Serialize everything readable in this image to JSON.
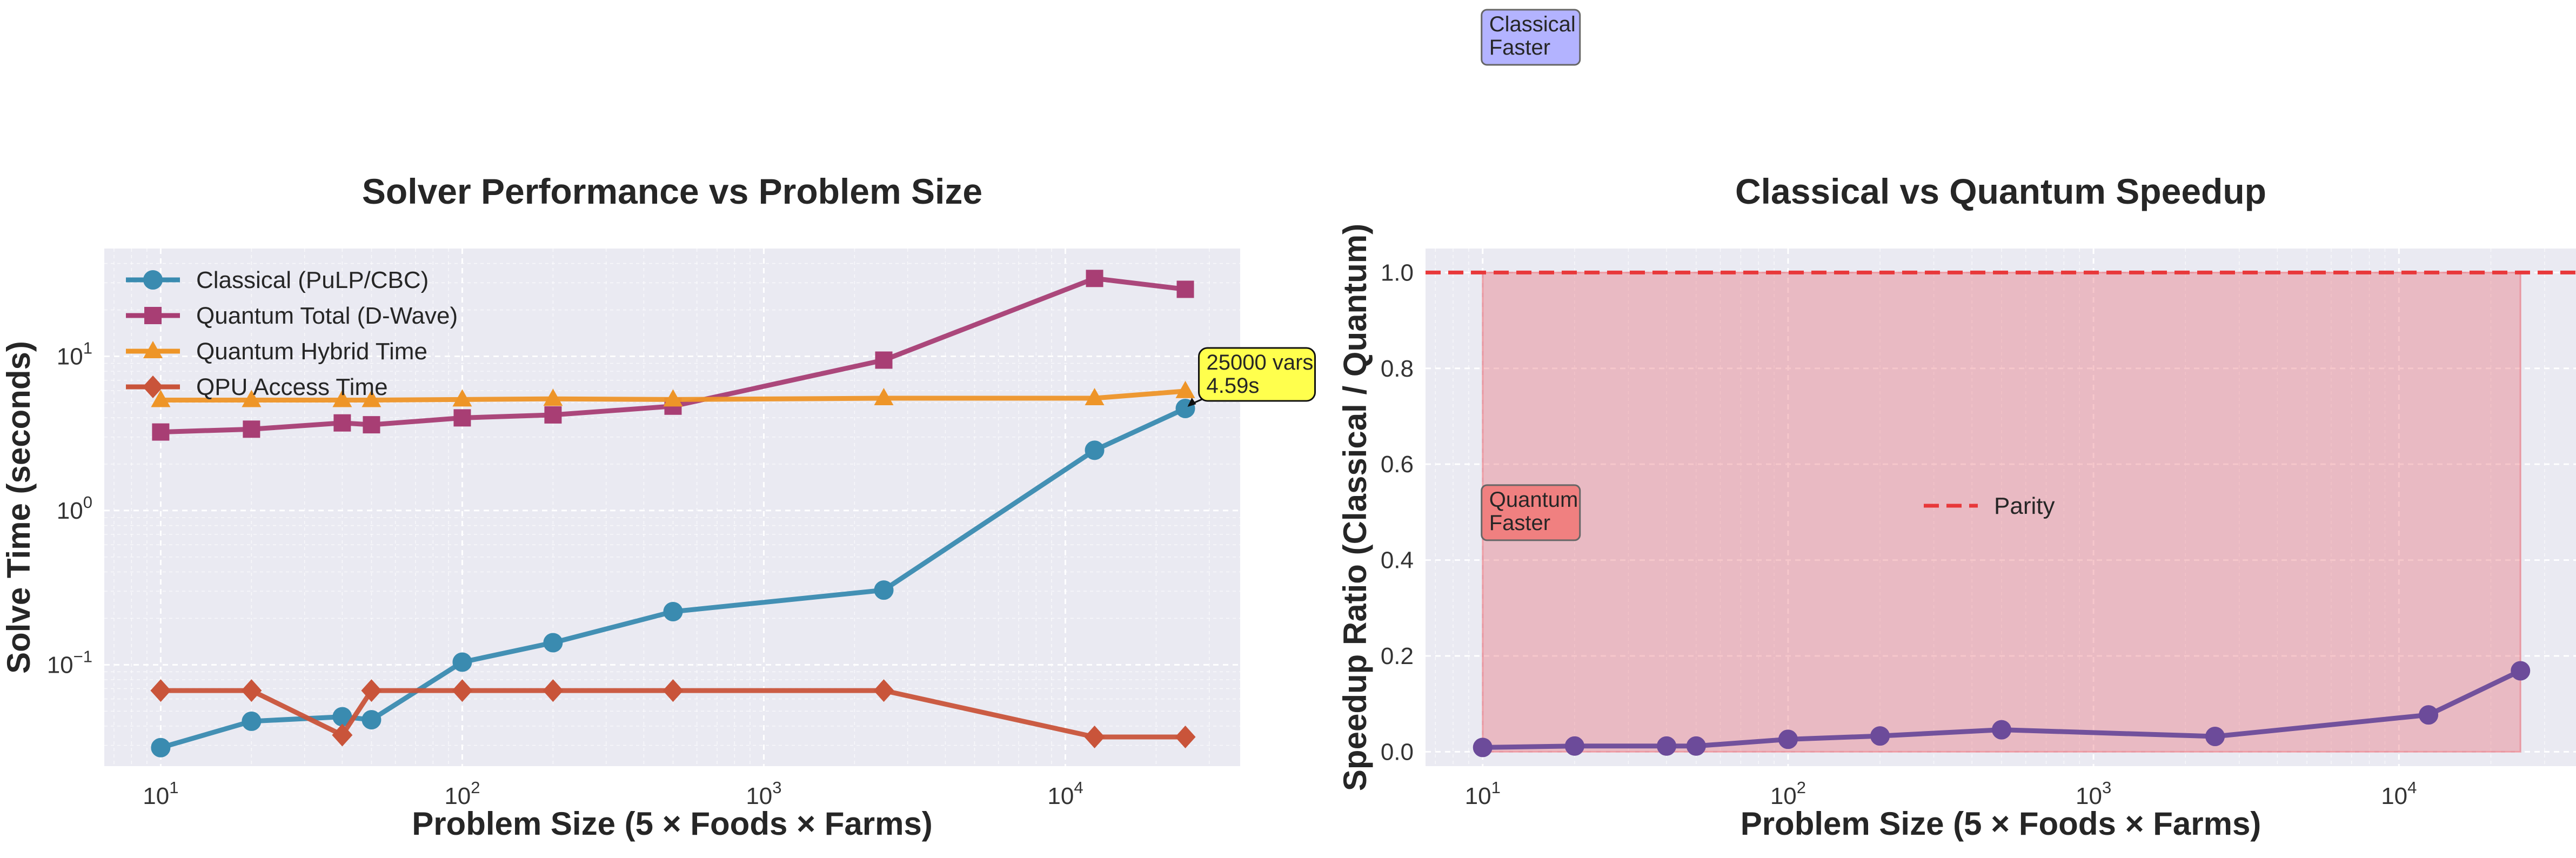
{
  "chart_data": [
    {
      "type": "line",
      "title": "Solver Performance vs Problem Size",
      "xlabel": "Problem Size (5 × Foods × Farms)",
      "ylabel": "Solve Time (seconds)",
      "xscale": "log",
      "yscale": "log",
      "xlim": [
        6.5,
        38000
      ],
      "ylim": [
        0.022,
        50
      ],
      "x_ticks": [
        {
          "value": 10,
          "exp": "1"
        },
        {
          "value": 100,
          "exp": "2"
        },
        {
          "value": 1000,
          "exp": "3"
        },
        {
          "value": 10000,
          "exp": "4"
        }
      ],
      "y_ticks": [
        {
          "value": 0.1,
          "exp": "−1"
        },
        {
          "value": 1,
          "exp": "0"
        },
        {
          "value": 10,
          "exp": "1"
        }
      ],
      "tick_base": "10",
      "grid": true,
      "legend_position": "top-left",
      "series": [
        {
          "name": "Classical (PuLP/CBC)",
          "color": "#3a8bb0",
          "marker": "circle",
          "x": [
            10,
            20,
            40,
            50,
            100,
            200,
            500,
            2500,
            12500,
            25000
          ],
          "y": [
            0.029,
            0.043,
            0.046,
            0.044,
            0.104,
            0.139,
            0.221,
            0.305,
            2.46,
            4.59
          ]
        },
        {
          "name": "Quantum Total (D-Wave)",
          "color": "#a83e74",
          "marker": "square",
          "x": [
            10,
            20,
            40,
            50,
            100,
            200,
            500,
            2500,
            12500,
            25000
          ],
          "y": [
            3.23,
            3.37,
            3.7,
            3.6,
            3.99,
            4.17,
            4.75,
            9.45,
            32,
            27.2
          ]
        },
        {
          "name": "Quantum Hybrid Time",
          "color": "#ee9528",
          "marker": "triangle",
          "x": [
            10,
            20,
            40,
            50,
            100,
            200,
            500,
            2500,
            12500,
            25000
          ],
          "y": [
            5.2,
            5.2,
            5.2,
            5.2,
            5.25,
            5.3,
            5.25,
            5.35,
            5.35,
            5.95
          ]
        },
        {
          "name": "QPU Access Time",
          "color": "#c9543a",
          "marker": "diamond",
          "x": [
            10,
            20,
            40,
            50,
            100,
            200,
            500,
            2500,
            12500,
            25000
          ],
          "y": [
            0.068,
            0.068,
            0.035,
            0.068,
            0.068,
            0.068,
            0.068,
            0.068,
            0.034,
            0.034
          ]
        }
      ],
      "annotations": [
        {
          "lines": [
            "25000 vars",
            "4.59s"
          ],
          "x": 25000,
          "y": 4.59,
          "bg": "#ffff4d"
        }
      ]
    },
    {
      "type": "line",
      "title": "Classical vs Quantum Speedup",
      "xlabel": "Problem Size (5 × Foods × Farms)",
      "ylabel": "Speedup Ratio (Classical / Quantum)",
      "xscale": "log",
      "yscale": "linear",
      "xlim": [
        6.5,
        38000
      ],
      "ylim": [
        -0.03,
        1.05
      ],
      "x_ticks": [
        {
          "value": 10,
          "exp": "1"
        },
        {
          "value": 100,
          "exp": "2"
        },
        {
          "value": 1000,
          "exp": "3"
        },
        {
          "value": 10000,
          "exp": "4"
        }
      ],
      "y_ticks": [
        {
          "value": 0.0,
          "label": "0.0"
        },
        {
          "value": 0.2,
          "label": "0.2"
        },
        {
          "value": 0.4,
          "label": "0.4"
        },
        {
          "value": 0.6,
          "label": "0.6"
        },
        {
          "value": 0.8,
          "label": "0.8"
        },
        {
          "value": 1.0,
          "label": "1.0"
        }
      ],
      "tick_base": "10",
      "grid": true,
      "legend_position": "center",
      "reference_line": {
        "name": "Parity",
        "y": 1.0,
        "color": "#e8383a"
      },
      "shaded_region": {
        "from_y": 0,
        "to_y": 1,
        "x_from": 10,
        "x_to": 25000,
        "color": "#e8737e"
      },
      "series": [
        {
          "name": "",
          "color": "#6c4b9a",
          "marker": "circle",
          "x": [
            10,
            20,
            40,
            50,
            100,
            200,
            500,
            2500,
            12500,
            25000
          ],
          "y": [
            0.009,
            0.012,
            0.012,
            0.012,
            0.026,
            0.033,
            0.046,
            0.032,
            0.077,
            0.169
          ]
        }
      ],
      "annotations": [
        {
          "lines": [
            "Classical",
            "Faster"
          ],
          "x": 10,
          "y": 2.55,
          "bg": "#b3b3ff"
        },
        {
          "lines": [
            "Quantum",
            "Faster"
          ],
          "x": 10,
          "y": 0.5,
          "bg": "#f08080"
        }
      ]
    }
  ]
}
